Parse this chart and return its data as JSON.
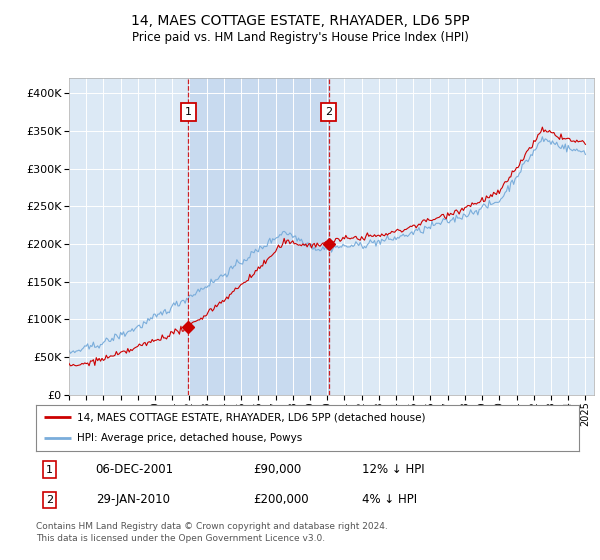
{
  "title": "14, MAES COTTAGE ESTATE, RHAYADER, LD6 5PP",
  "subtitle": "Price paid vs. HM Land Registry's House Price Index (HPI)",
  "plot_bg_color": "#dce9f5",
  "hpi_color": "#7aaddb",
  "price_color": "#cc0000",
  "shade_color": "#c5d8ef",
  "ylim": [
    0,
    420000
  ],
  "yticks": [
    0,
    50000,
    100000,
    150000,
    200000,
    250000,
    300000,
    350000,
    400000
  ],
  "xlim_start": 1995.0,
  "xlim_end": 2025.5,
  "purchase1_x": 2001.92,
  "purchase1_y": 90000,
  "purchase1_label": "1",
  "purchase1_date": "06-DEC-2001",
  "purchase1_price": "£90,000",
  "purchase1_hpi": "12% ↓ HPI",
  "purchase2_x": 2010.08,
  "purchase2_y": 200000,
  "purchase2_label": "2",
  "purchase2_date": "29-JAN-2010",
  "purchase2_price": "£200,000",
  "purchase2_hpi": "4% ↓ HPI",
  "legend_label1": "14, MAES COTTAGE ESTATE, RHAYADER, LD6 5PP (detached house)",
  "legend_label2": "HPI: Average price, detached house, Powys",
  "footer": "Contains HM Land Registry data © Crown copyright and database right 2024.\nThis data is licensed under the Open Government Licence v3.0."
}
